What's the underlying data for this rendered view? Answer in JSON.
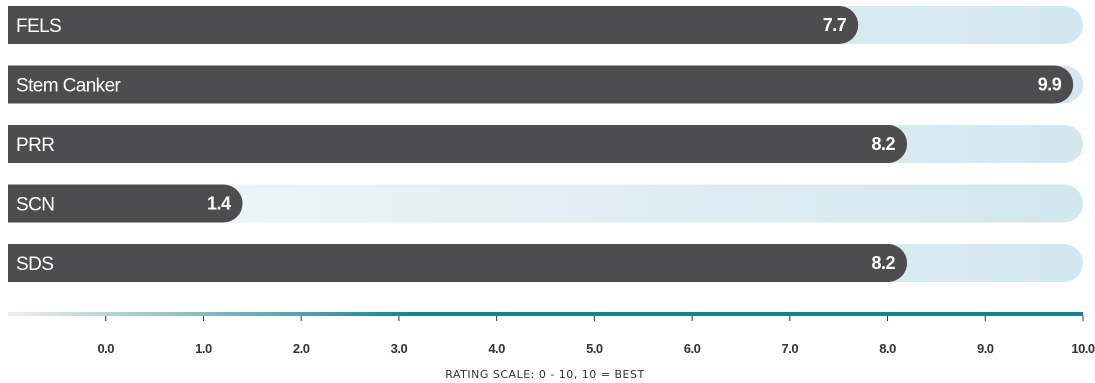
{
  "chart_data": {
    "type": "bar",
    "orientation": "horizontal",
    "categories": [
      "FELS",
      "Stem Canker",
      "PRR",
      "SCN",
      "SDS"
    ],
    "values": [
      7.7,
      9.9,
      8.2,
      1.4,
      8.2
    ],
    "value_labels": [
      "7.7",
      "9.9",
      "8.2",
      "1.4",
      "8.2"
    ],
    "xlim": [
      -1,
      10
    ],
    "xticks": [
      0,
      1,
      2,
      3,
      4,
      5,
      6,
      7,
      8,
      9,
      10
    ],
    "xtick_labels": [
      "0.0",
      "1.0",
      "2.0",
      "3.0",
      "4.0",
      "5.0",
      "6.0",
      "7.0",
      "8.0",
      "9.0",
      "10.0"
    ],
    "axis_note": "RATING SCALE: 0 - 10, 10 = BEST",
    "title": "",
    "xlabel": "",
    "ylabel": "",
    "grid": false,
    "colors": {
      "bar": "#4d4d4f",
      "track_light": "#f2f7f9",
      "track": "#d2e7ee",
      "axis_start": "#eeeeee",
      "axis_end": "#0f8593",
      "text_light": "#ffffff",
      "text_dark": "#333333"
    }
  }
}
